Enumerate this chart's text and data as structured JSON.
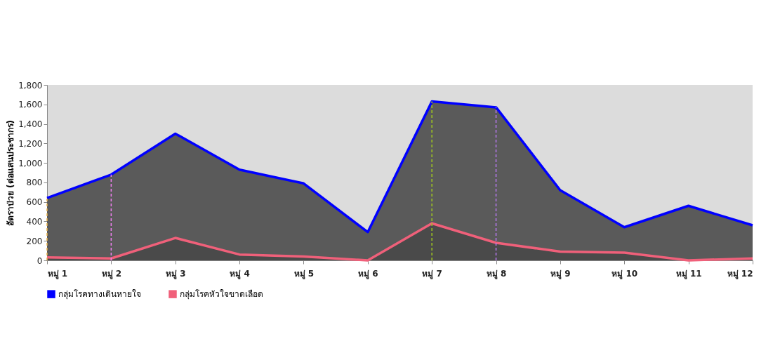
{
  "chart_data": {
    "type": "area",
    "ylabel": "อัตราป่วย (ต่อแสนประชากร)",
    "categories": [
      "หมู่ 1",
      "หมู่ 2",
      "หมู่ 3",
      "หมู่ 4",
      "หมู่ 5",
      "หมู่ 6",
      "หมู่ 7",
      "หมู่ 8",
      "หมู่ 9",
      "หมู่ 10",
      "หมู่ 11",
      "หมู่ 12"
    ],
    "series": [
      {
        "name": "กลุ่มโรคทางเดินหายใจ",
        "color": "#0000ff",
        "values": [
          640,
          880,
          1300,
          930,
          790,
          290,
          1630,
          1570,
          720,
          340,
          560,
          360
        ]
      },
      {
        "name": "กลุ่มโรคหัวใจขาดเลือด",
        "color": "#f0607a",
        "values": [
          30,
          20,
          230,
          60,
          40,
          0,
          380,
          180,
          90,
          80,
          0,
          20
        ]
      }
    ],
    "ylim": [
      0,
      1800
    ],
    "yticks": [
      0,
      200,
      400,
      600,
      800,
      {
        "value": 1000,
        "label": "1,000"
      },
      {
        "value": 1200,
        "label": "1,200"
      },
      {
        "value": 1400,
        "label": "1,400"
      },
      {
        "value": 1600,
        "label": "1,600"
      },
      {
        "value": 1800,
        "label": "1,800"
      }
    ],
    "ref_lines": [
      {
        "axis": "x",
        "value": "หมู่ 1",
        "color": "#e8b04a",
        "line_style": "dashed"
      },
      {
        "axis": "x",
        "value": "หมู่ 2",
        "color": "#f080f0",
        "line_style": "dashed"
      },
      {
        "axis": "x",
        "value": "หมู่ 7",
        "color": "#a0c820",
        "line_style": "dashed"
      },
      {
        "axis": "x",
        "value": "หมู่ 8",
        "color": "#b878f0",
        "line_style": "dashed"
      }
    ],
    "grid": false,
    "legend": "bottom",
    "marker": "none"
  }
}
